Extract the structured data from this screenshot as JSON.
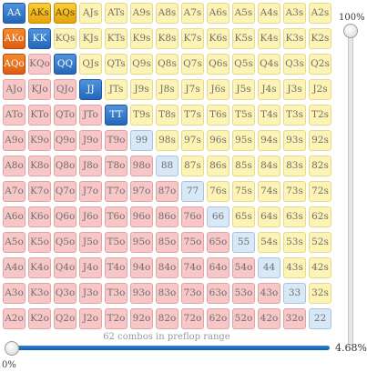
{
  "grid": {
    "hands": [
      [
        "AA",
        "AKs",
        "AQs",
        "AJs",
        "ATs",
        "A9s",
        "A8s",
        "A7s",
        "A6s",
        "A5s",
        "A4s",
        "A3s",
        "A2s"
      ],
      [
        "AKo",
        "KK",
        "KQs",
        "KJs",
        "KTs",
        "K9s",
        "K8s",
        "K7s",
        "K6s",
        "K5s",
        "K4s",
        "K3s",
        "K2s"
      ],
      [
        "AQo",
        "KQo",
        "QQ",
        "QJs",
        "QTs",
        "Q9s",
        "Q8s",
        "Q7s",
        "Q6s",
        "Q5s",
        "Q4s",
        "Q3s",
        "Q2s"
      ],
      [
        "AJo",
        "KJo",
        "QJo",
        "JJ",
        "JTs",
        "J9s",
        "J8s",
        "J7s",
        "J6s",
        "J5s",
        "J4s",
        "J3s",
        "J2s"
      ],
      [
        "ATo",
        "KTo",
        "QTo",
        "JTo",
        "TT",
        "T9s",
        "T8s",
        "T7s",
        "T6s",
        "T5s",
        "T4s",
        "T3s",
        "T2s"
      ],
      [
        "A9o",
        "K9o",
        "Q9o",
        "J9o",
        "T9o",
        "99",
        "98s",
        "97s",
        "96s",
        "95s",
        "94s",
        "93s",
        "92s"
      ],
      [
        "A8o",
        "K8o",
        "Q8o",
        "J8o",
        "T8o",
        "98o",
        "88",
        "87s",
        "86s",
        "85s",
        "84s",
        "83s",
        "82s"
      ],
      [
        "A7o",
        "K7o",
        "Q7o",
        "J7o",
        "T7o",
        "97o",
        "87o",
        "77",
        "76s",
        "75s",
        "74s",
        "73s",
        "72s"
      ],
      [
        "A6o",
        "K6o",
        "Q6o",
        "J6o",
        "T6o",
        "96o",
        "86o",
        "76o",
        "66",
        "65s",
        "64s",
        "63s",
        "62s"
      ],
      [
        "A5o",
        "K5o",
        "Q5o",
        "J5o",
        "T5o",
        "95o",
        "85o",
        "75o",
        "65o",
        "55",
        "54s",
        "53s",
        "52s"
      ],
      [
        "A4o",
        "K4o",
        "Q4o",
        "J4o",
        "T4o",
        "94o",
        "84o",
        "74o",
        "64o",
        "54o",
        "44",
        "43s",
        "42s"
      ],
      [
        "A3o",
        "K3o",
        "Q3o",
        "J3o",
        "T3o",
        "93o",
        "83o",
        "73o",
        "63o",
        "53o",
        "43o",
        "33",
        "32s"
      ],
      [
        "A2o",
        "K2o",
        "Q2o",
        "J2o",
        "T2o",
        "92o",
        "82o",
        "72o",
        "62o",
        "52o",
        "42o",
        "32o",
        "22"
      ]
    ],
    "selected": [
      "AA",
      "AKs",
      "AQs",
      "AKo",
      "KK",
      "AQo",
      "QQ",
      "JJ",
      "TT"
    ]
  },
  "colors": {
    "pair": "#d9e8f7",
    "suited": "#fdf3b4",
    "offsuit": "#f7c7c7",
    "selected_pair": "#2466b8",
    "selected_suited": "#e6a308",
    "selected_offsuit": "#de5d10"
  },
  "vertical_slider": {
    "label": "100%",
    "value_percent": 100
  },
  "horizontal_slider": {
    "min_label": "0%",
    "value_label": "4.68%",
    "value_percent": 4.68
  },
  "combos_text": "62 combos in preflop range"
}
